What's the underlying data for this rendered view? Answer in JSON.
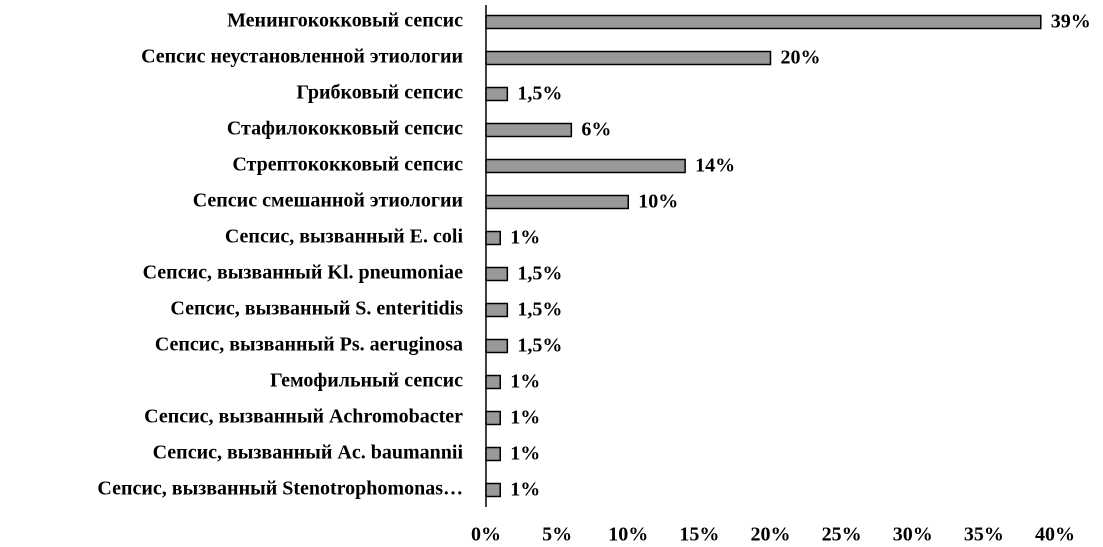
{
  "chart_data": {
    "type": "barh",
    "categories": [
      "Менингококковый сепсис",
      "Сепсис неустановленной этиологии",
      "Грибковый сепсис",
      "Стафилококковый сепсис",
      "Стрептококковый сепсис",
      "Сепсис смешанной этиологии",
      "Сепсис, вызванный E. coli",
      "Сепсис, вызванный Kl. pneumoniae",
      "Сепсис, вызванный S. enteritidis",
      "Сепсис, вызванный Ps. aeruginosa",
      "Гемофильный сепсис",
      "Сепсис, вызванный Achromobacter",
      "Сепсис, вызванный Ac. baumannii",
      "Сепсис, вызванный Stenotrophomonas…"
    ],
    "values": [
      39,
      20,
      1.5,
      6,
      14,
      10,
      1,
      1.5,
      1.5,
      1.5,
      1,
      1,
      1,
      1
    ],
    "value_labels": [
      "39%",
      "20%",
      "1,5%",
      "6%",
      "14%",
      "10%",
      "1%",
      "1,5%",
      "1,5%",
      "1,5%",
      "1%",
      "1%",
      "1%",
      "1%"
    ],
    "color": "#999999",
    "xlim": [
      0,
      40
    ],
    "xticks": [
      {
        "value": 0,
        "label": "0%"
      },
      {
        "value": 5,
        "label": "5%"
      },
      {
        "value": 10,
        "label": "10%"
      },
      {
        "value": 15,
        "label": "15%"
      },
      {
        "value": 20,
        "label": "20%"
      },
      {
        "value": 25,
        "label": "25%"
      },
      {
        "value": 30,
        "label": "30%"
      },
      {
        "value": 35,
        "label": "35%"
      },
      {
        "value": 40,
        "label": "40%"
      }
    ],
    "grid": false
  }
}
